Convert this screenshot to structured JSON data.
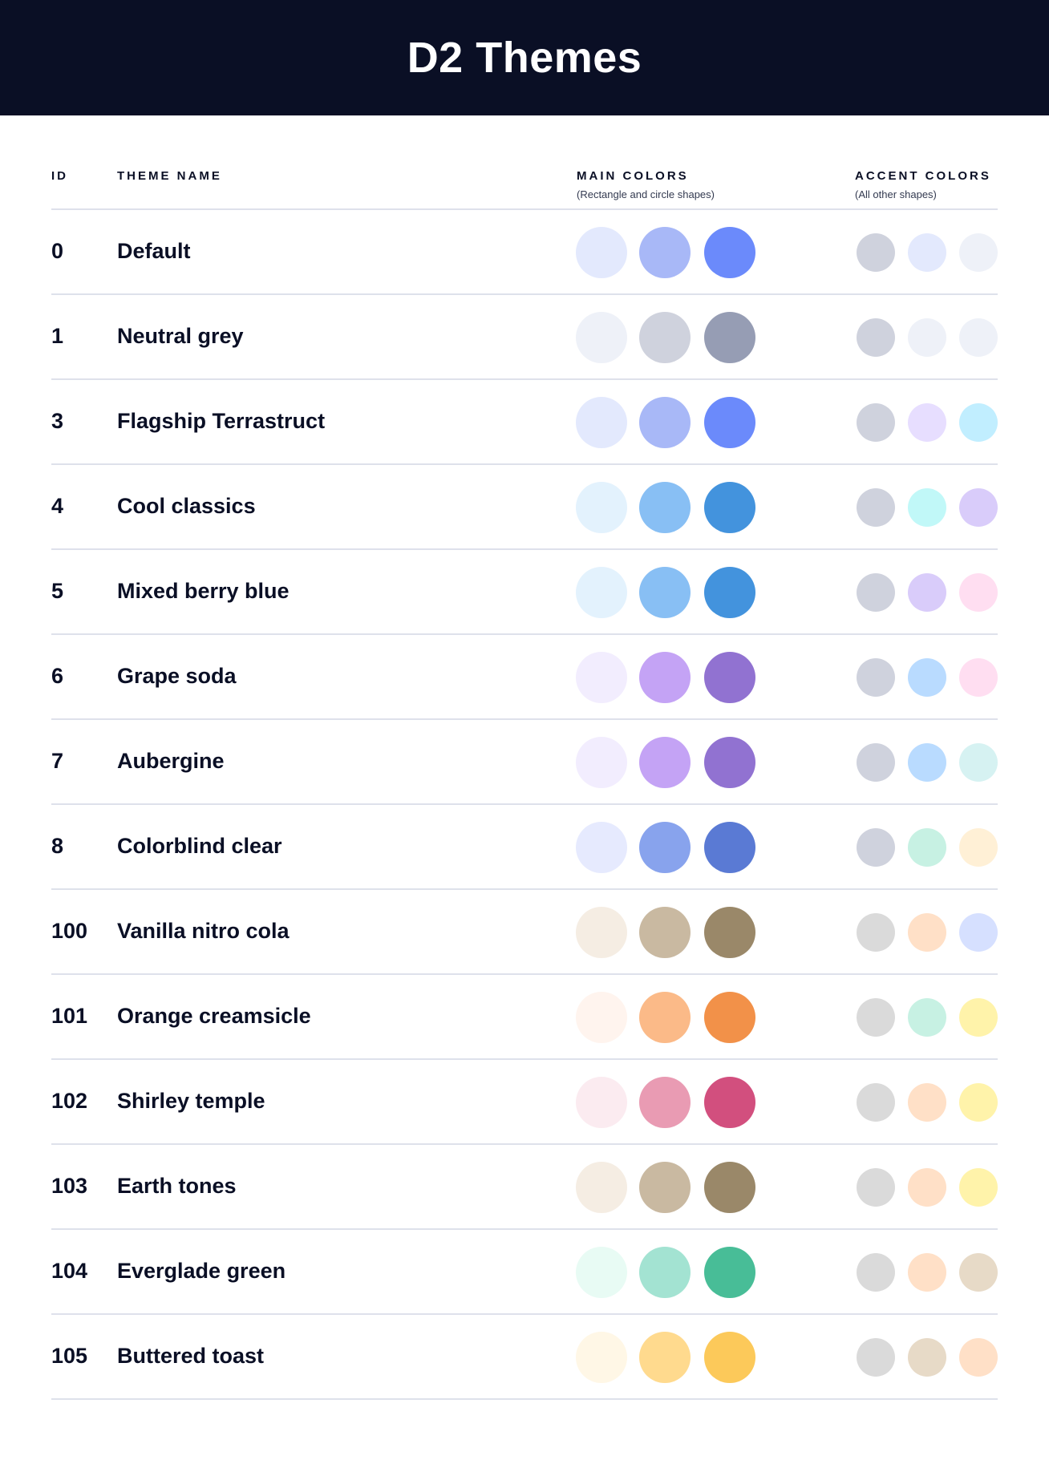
{
  "header": {
    "title": "D2 Themes"
  },
  "columns": {
    "id": "ID",
    "name": "THEME NAME",
    "main": "MAIN COLORS",
    "main_sub": "(Rectangle and circle shapes)",
    "accent": "ACCENT COLORS",
    "accent_sub": "(All other shapes)"
  },
  "themes": [
    {
      "id": "0",
      "name": "Default",
      "main": [
        "#E3E9FD",
        "#A8B8F7",
        "#6B8AFB"
      ],
      "accent": [
        "#CFD2DD",
        "#E3E9FD",
        "#EEF1F8"
      ]
    },
    {
      "id": "1",
      "name": "Neutral grey",
      "main": [
        "#EEF1F8",
        "#CFD2DD",
        "#969DB4"
      ],
      "accent": [
        "#CFD2DD",
        "#EEF1F8",
        "#EEF1F8"
      ]
    },
    {
      "id": "3",
      "name": "Flagship Terrastruct",
      "main": [
        "#E3E9FD",
        "#A8B8F7",
        "#6B8AFB"
      ],
      "accent": [
        "#CFD2DD",
        "#E7DEFF",
        "#C1EEFF"
      ]
    },
    {
      "id": "4",
      "name": "Cool classics",
      "main": [
        "#E3F2FD",
        "#88BFF4",
        "#4393DD"
      ],
      "accent": [
        "#CFD2DD",
        "#C1F8F8",
        "#D9CCFA"
      ]
    },
    {
      "id": "5",
      "name": "Mixed berry blue",
      "main": [
        "#E3F2FD",
        "#88BFF4",
        "#4393DD"
      ],
      "accent": [
        "#CFD2DD",
        "#D9CCFA",
        "#FFDEF1"
      ]
    },
    {
      "id": "6",
      "name": "Grape soda",
      "main": [
        "#F2EDFE",
        "#C4A3F5",
        "#9172D1"
      ],
      "accent": [
        "#CFD2DD",
        "#B9DBFF",
        "#FFDEF1"
      ]
    },
    {
      "id": "7",
      "name": "Aubergine",
      "main": [
        "#F2EDFE",
        "#C4A3F5",
        "#9172D1"
      ],
      "accent": [
        "#CFD2DD",
        "#B9DBFF",
        "#D6F2F2"
      ]
    },
    {
      "id": "8",
      "name": "Colorblind clear",
      "main": [
        "#E6EAFE",
        "#88A3ED",
        "#5A7AD4"
      ],
      "accent": [
        "#CFD2DD",
        "#C7F1E3",
        "#FFF0D6"
      ]
    },
    {
      "id": "100",
      "name": "Vanilla nitro cola",
      "main": [
        "#F5EDE3",
        "#C9B9A1",
        "#9A8869"
      ],
      "accent": [
        "#DADADA",
        "#FFE0C7",
        "#D6E0FF"
      ]
    },
    {
      "id": "101",
      "name": "Orange creamsicle",
      "main": [
        "#FFF4EE",
        "#FBBA88",
        "#F29149"
      ],
      "accent": [
        "#DADADA",
        "#C7F1E3",
        "#FFF3AA"
      ]
    },
    {
      "id": "102",
      "name": "Shirley temple",
      "main": [
        "#FBEBF0",
        "#E99BB3",
        "#D24F7E"
      ],
      "accent": [
        "#DADADA",
        "#FFE0C7",
        "#FFF3AA"
      ]
    },
    {
      "id": "103",
      "name": "Earth tones",
      "main": [
        "#F5EDE3",
        "#C9B9A1",
        "#9A8869"
      ],
      "accent": [
        "#DADADA",
        "#FFE0C7",
        "#FFF3AA"
      ]
    },
    {
      "id": "104",
      "name": "Everglade green",
      "main": [
        "#E8FBF4",
        "#A3E3D2",
        "#48BD97"
      ],
      "accent": [
        "#DADADA",
        "#FFE0C7",
        "#E7DAC7"
      ]
    },
    {
      "id": "105",
      "name": "Buttered toast",
      "main": [
        "#FFF7E6",
        "#FFDA8E",
        "#FCC95A"
      ],
      "accent": [
        "#DADADA",
        "#E7DAC7",
        "#FFE0C7"
      ]
    }
  ]
}
